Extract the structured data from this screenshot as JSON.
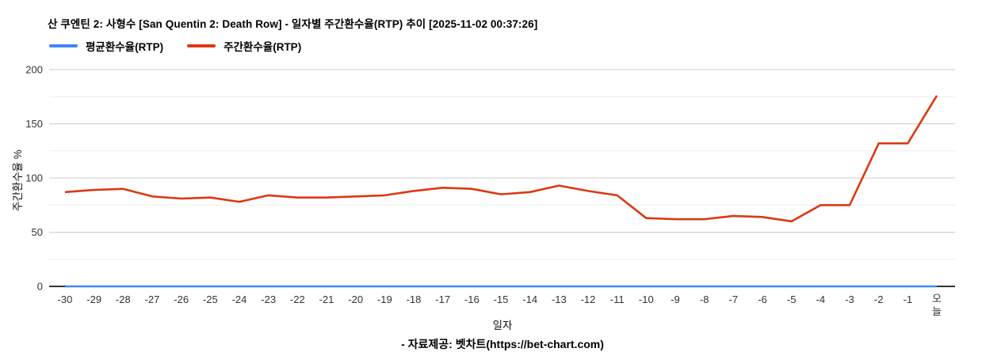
{
  "header": {
    "title": "산 쿠엔틴 2: 사형수 [San Quentin 2: Death Row] - 일자별 주간환수율(RTP) 추이 [2025-11-02 00:37:26]"
  },
  "legend": {
    "items": [
      {
        "label": "평균환수율(RTP)",
        "color": "#4285f4"
      },
      {
        "label": "주간환수율(RTP)",
        "color": "#dc3912"
      }
    ]
  },
  "footer": {
    "source": "- 자료제공: 벳차트(https://bet-chart.com)"
  },
  "colors": {
    "gridline_major": "#cccccc",
    "gridline_minor": "#ececec",
    "axis_baseline": "#333333",
    "tick_label": "#333333"
  },
  "chart_data": {
    "type": "line",
    "title": "산 쿠엔틴 2: 사형수 [San Quentin 2: Death Row] - 일자별 주간환수율(RTP) 추이 [2025-11-02 00:37:26]",
    "xlabel": "일자",
    "ylabel": "주간환수율 %",
    "ylim": [
      0,
      200
    ],
    "yticks": [
      0,
      50,
      100,
      150,
      200
    ],
    "yticks_minor": [
      25,
      75,
      125,
      175
    ],
    "grid": true,
    "legend_position": "top-left",
    "categories": [
      "-30",
      "-29",
      "-28",
      "-27",
      "-26",
      "-25",
      "-24",
      "-23",
      "-22",
      "-21",
      "-20",
      "-19",
      "-18",
      "-17",
      "-16",
      "-15",
      "-14",
      "-13",
      "-12",
      "-11",
      "-10",
      "-9",
      "-8",
      "-7",
      "-6",
      "-5",
      "-4",
      "-3",
      "-2",
      "-1",
      "오늘"
    ],
    "series": [
      {
        "name": "평균환수율(RTP)",
        "slug": "average-rtp",
        "color": "#4285f4",
        "values": [
          0,
          0,
          0,
          0,
          0,
          0,
          0,
          0,
          0,
          0,
          0,
          0,
          0,
          0,
          0,
          0,
          0,
          0,
          0,
          0,
          0,
          0,
          0,
          0,
          0,
          0,
          0,
          0,
          0,
          0,
          0
        ]
      },
      {
        "name": "주간환수율(RTP)",
        "slug": "weekly-rtp",
        "color": "#dc3912",
        "values": [
          87,
          89,
          90,
          83,
          81,
          82,
          78,
          84,
          82,
          82,
          83,
          84,
          88,
          91,
          90,
          85,
          87,
          93,
          88,
          84,
          63,
          62,
          62,
          65,
          64,
          60,
          75,
          75,
          132,
          132,
          176
        ]
      }
    ]
  }
}
